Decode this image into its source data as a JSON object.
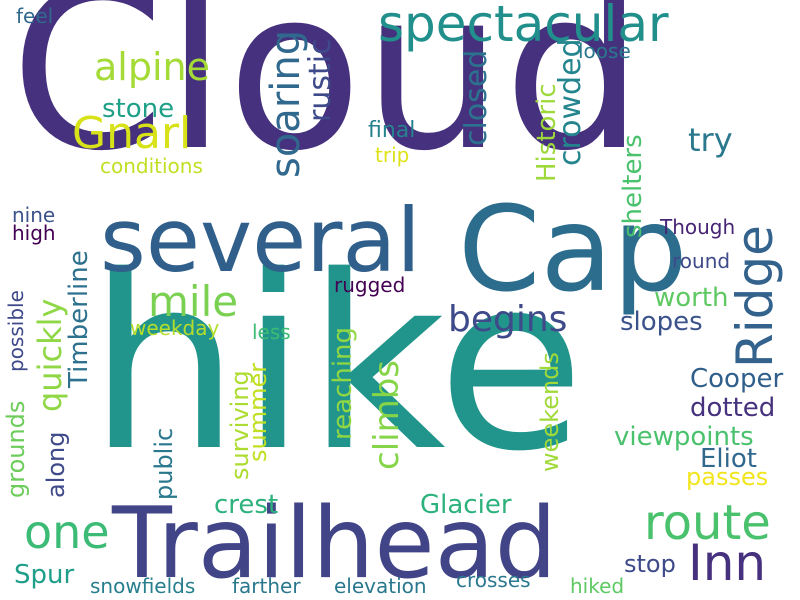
{
  "palette": {
    "deep_purple": "#46317e",
    "indigo": "#3b4b8c",
    "blue": "#31688e",
    "slate_blue": "#2f5f8a",
    "teal": "#21908d",
    "teal_green": "#1f9e89",
    "green": "#35b779",
    "light_green": "#6ece58",
    "lime": "#90d743",
    "yellow_green": "#b5de2b",
    "yellow": "#dde318",
    "dark_purple": "#440154",
    "purple": "#472d7b"
  },
  "words": [
    {
      "id": "cloud",
      "text": "Cloud",
      "color": "#46317e"
    },
    {
      "id": "hike",
      "text": "hike",
      "color": "#21958b"
    },
    {
      "id": "trailhead",
      "text": "Trailhead",
      "color": "#414487"
    },
    {
      "id": "cap",
      "text": "Cap",
      "color": "#2c6d8e"
    },
    {
      "id": "several",
      "text": "several",
      "color": "#2f5f8a"
    },
    {
      "id": "spectacular",
      "text": "spectacular",
      "color": "#21908d"
    },
    {
      "id": "gnarl",
      "text": "Gnarl",
      "color": "#d8e219"
    },
    {
      "id": "alpine",
      "text": "alpine",
      "color": "#a5db36"
    },
    {
      "id": "ridge",
      "text": "Ridge",
      "color": "#33638d"
    },
    {
      "id": "route",
      "text": "route",
      "color": "#4ac16d"
    },
    {
      "id": "inn",
      "text": "Inn",
      "color": "#46317e"
    },
    {
      "id": "one",
      "text": "one",
      "color": "#3bbb75"
    },
    {
      "id": "mile",
      "text": "mile",
      "color": "#7ad151"
    },
    {
      "id": "begins",
      "text": "begins",
      "color": "#3e4a89"
    },
    {
      "id": "soaring",
      "text": "soaring",
      "color": "#31688e"
    },
    {
      "id": "rustic",
      "text": "rustic",
      "color": "#3e4a89"
    },
    {
      "id": "stone",
      "text": "stone",
      "color": "#1fa088"
    },
    {
      "id": "conditions",
      "text": "conditions",
      "color": "#c2df23"
    },
    {
      "id": "closed",
      "text": "closed",
      "color": "#2c728e"
    },
    {
      "id": "crowded",
      "text": "crowded",
      "color": "#25858e"
    },
    {
      "id": "historic",
      "text": "Historic",
      "color": "#9dd93b"
    },
    {
      "id": "loose",
      "text": "loose",
      "color": "#2a788e"
    },
    {
      "id": "final",
      "text": "final",
      "color": "#26828e"
    },
    {
      "id": "trip",
      "text": "trip",
      "color": "#dde318"
    },
    {
      "id": "try",
      "text": "try",
      "color": "#2a788e"
    },
    {
      "id": "shelters",
      "text": "shelters",
      "color": "#4ac16d"
    },
    {
      "id": "though",
      "text": "Though",
      "color": "#482475"
    },
    {
      "id": "round",
      "text": "round",
      "color": "#3e4a89"
    },
    {
      "id": "nine",
      "text": "nine",
      "color": "#3b528b"
    },
    {
      "id": "high",
      "text": "high",
      "color": "#440154"
    },
    {
      "id": "feel",
      "text": "feel",
      "color": "#31688e"
    },
    {
      "id": "quickly",
      "text": "quickly",
      "color": "#8fd744"
    },
    {
      "id": "timberline",
      "text": "Timberline",
      "color": "#2d718e"
    },
    {
      "id": "grounds",
      "text": "grounds",
      "color": "#6ccd5a"
    },
    {
      "id": "possible",
      "text": "possible",
      "color": "#3e4a89"
    },
    {
      "id": "along",
      "text": "along",
      "color": "#3e4a89"
    },
    {
      "id": "weekday",
      "text": "weekday",
      "color": "#b5de2b"
    },
    {
      "id": "less",
      "text": "less",
      "color": "#3dbc74"
    },
    {
      "id": "rugged",
      "text": "rugged",
      "color": "#440154"
    },
    {
      "id": "reaching",
      "text": "reaching",
      "color": "#90d743"
    },
    {
      "id": "surviving",
      "text": "surviving",
      "color": "#addc30"
    },
    {
      "id": "summer",
      "text": "summer",
      "color": "#c2df23"
    },
    {
      "id": "public",
      "text": "public",
      "color": "#2a788e"
    },
    {
      "id": "climbs",
      "text": "climbs",
      "color": "#86d549"
    },
    {
      "id": "weekends",
      "text": "weekends",
      "color": "#a0da39"
    },
    {
      "id": "worth",
      "text": "worth",
      "color": "#5ec962"
    },
    {
      "id": "slopes",
      "text": "slopes",
      "color": "#3b528b"
    },
    {
      "id": "cooper",
      "text": "Cooper",
      "color": "#2f5f8a"
    },
    {
      "id": "dotted",
      "text": "dotted",
      "color": "#46327e"
    },
    {
      "id": "viewpoints",
      "text": "viewpoints",
      "color": "#4ac16d"
    },
    {
      "id": "eliot",
      "text": "Eliot",
      "color": "#31688e"
    },
    {
      "id": "passes",
      "text": "passes",
      "color": "#f1e51d"
    },
    {
      "id": "crest",
      "text": "crest",
      "color": "#2db27d"
    },
    {
      "id": "glacier",
      "text": "Glacier",
      "color": "#2db27d"
    },
    {
      "id": "stop",
      "text": "stop",
      "color": "#3e4a89"
    },
    {
      "id": "spur",
      "text": "Spur",
      "color": "#1f9e89"
    },
    {
      "id": "snowfields",
      "text": "snowfields",
      "color": "#277f8e"
    },
    {
      "id": "farther",
      "text": "farther",
      "color": "#2a788e"
    },
    {
      "id": "elevation",
      "text": "elevation",
      "color": "#2a788e"
    },
    {
      "id": "crosses",
      "text": "crosses",
      "color": "#2a788e"
    },
    {
      "id": "hiked",
      "text": "hiked",
      "color": "#5ec962"
    }
  ]
}
